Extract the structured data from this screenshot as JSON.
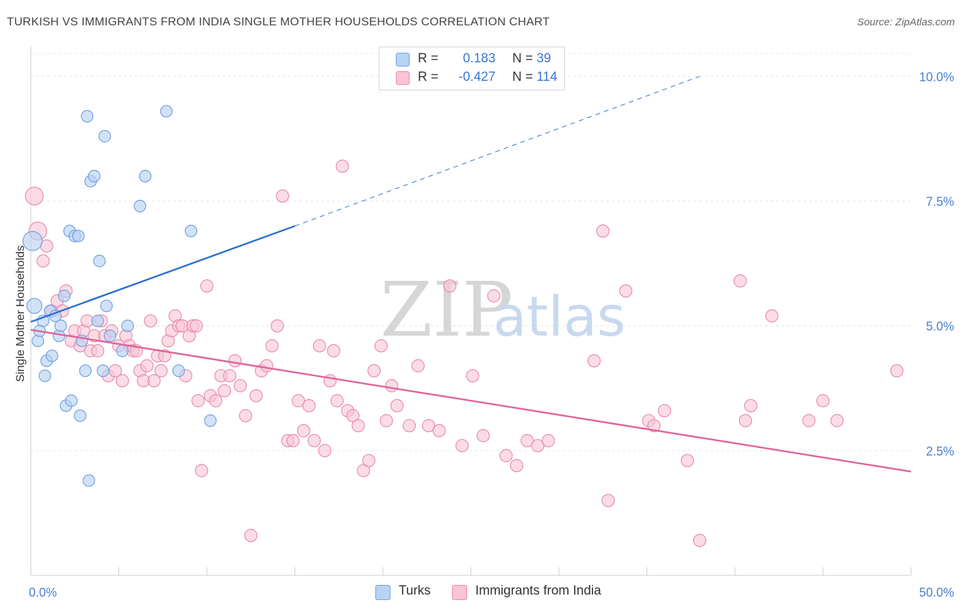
{
  "title": "TURKISH VS IMMIGRANTS FROM INDIA SINGLE MOTHER HOUSEHOLDS CORRELATION CHART",
  "source": "Source: ZipAtlas.com",
  "watermark": {
    "zip": "ZIP",
    "atlas": "atlas"
  },
  "legend": {
    "r_label": "R =",
    "n_label": "N =",
    "turks": {
      "r": "0.183",
      "n": "39"
    },
    "india": {
      "r": "-0.427",
      "n": "114"
    }
  },
  "colors": {
    "turks_fill": "#b9d3f3",
    "turks_stroke": "#6f9fe0",
    "turks_line": "#2b6fcf",
    "india_fill": "#f8c4d6",
    "india_stroke": "#e88aaa",
    "india_line": "#e0649a",
    "grid": "#e4e4e4",
    "axis_text": "#4a7fd0"
  },
  "chart_data": {
    "type": "scatter",
    "title": "TURKISH VS IMMIGRANTS FROM INDIA SINGLE MOTHER HOUSEHOLDS CORRELATION CHART",
    "xlabel": "",
    "ylabel": "Single Mother Households",
    "xlim": [
      0,
      50
    ],
    "ylim": [
      0,
      10.5
    ],
    "x_tick_labels": [
      "0.0%",
      "50.0%"
    ],
    "y_ticks": [
      2.5,
      5.0,
      7.5,
      10.0
    ],
    "y_tick_labels": [
      "2.5%",
      "5.0%",
      "7.5%",
      "10.0%"
    ],
    "grid": true,
    "legend_position": "top-center",
    "series": [
      {
        "name": "Turks",
        "points": [
          [
            0.1,
            6.7
          ],
          [
            0.2,
            5.4
          ],
          [
            0.4,
            4.7
          ],
          [
            0.5,
            4.9
          ],
          [
            0.7,
            5.1
          ],
          [
            0.8,
            4.0
          ],
          [
            0.9,
            4.3
          ],
          [
            1.1,
            5.3
          ],
          [
            1.2,
            4.4
          ],
          [
            1.4,
            5.2
          ],
          [
            1.6,
            4.8
          ],
          [
            1.7,
            5.0
          ],
          [
            1.9,
            5.6
          ],
          [
            2.0,
            3.4
          ],
          [
            2.2,
            6.9
          ],
          [
            2.3,
            3.5
          ],
          [
            2.5,
            6.8
          ],
          [
            2.7,
            6.8
          ],
          [
            2.8,
            3.2
          ],
          [
            2.9,
            4.7
          ],
          [
            3.1,
            4.1
          ],
          [
            3.2,
            9.2
          ],
          [
            3.3,
            1.9
          ],
          [
            3.4,
            7.9
          ],
          [
            3.6,
            8.0
          ],
          [
            3.8,
            5.1
          ],
          [
            3.9,
            6.3
          ],
          [
            4.1,
            4.1
          ],
          [
            4.2,
            8.8
          ],
          [
            4.3,
            5.4
          ],
          [
            4.5,
            4.8
          ],
          [
            5.2,
            4.5
          ],
          [
            5.5,
            5.0
          ],
          [
            6.2,
            7.4
          ],
          [
            6.5,
            8.0
          ],
          [
            7.7,
            9.3
          ],
          [
            8.4,
            4.1
          ],
          [
            9.1,
            6.9
          ],
          [
            10.2,
            3.1
          ]
        ]
      },
      {
        "name": "Immigrants from India",
        "points": [
          [
            0.2,
            7.6
          ],
          [
            0.4,
            6.9
          ],
          [
            0.7,
            6.3
          ],
          [
            0.9,
            6.6
          ],
          [
            1.2,
            5.3
          ],
          [
            1.5,
            5.5
          ],
          [
            1.8,
            5.3
          ],
          [
            2.0,
            5.7
          ],
          [
            2.3,
            4.7
          ],
          [
            2.5,
            4.9
          ],
          [
            2.8,
            4.6
          ],
          [
            3.0,
            4.9
          ],
          [
            3.2,
            5.1
          ],
          [
            3.4,
            4.5
          ],
          [
            3.6,
            4.8
          ],
          [
            3.8,
            4.5
          ],
          [
            4.0,
            5.1
          ],
          [
            4.2,
            4.8
          ],
          [
            4.4,
            4.0
          ],
          [
            4.6,
            4.9
          ],
          [
            4.8,
            4.1
          ],
          [
            5.0,
            4.6
          ],
          [
            5.2,
            3.9
          ],
          [
            5.4,
            4.8
          ],
          [
            5.6,
            4.6
          ],
          [
            5.8,
            4.5
          ],
          [
            6.0,
            4.5
          ],
          [
            6.2,
            4.1
          ],
          [
            6.4,
            3.9
          ],
          [
            6.6,
            4.2
          ],
          [
            6.8,
            5.1
          ],
          [
            7.0,
            3.9
          ],
          [
            7.2,
            4.4
          ],
          [
            7.4,
            4.1
          ],
          [
            7.6,
            4.4
          ],
          [
            7.8,
            4.7
          ],
          [
            8.0,
            4.9
          ],
          [
            8.2,
            5.2
          ],
          [
            8.4,
            5.0
          ],
          [
            8.6,
            5.0
          ],
          [
            8.8,
            4.0
          ],
          [
            9.0,
            4.8
          ],
          [
            9.2,
            5.0
          ],
          [
            9.5,
            3.5
          ],
          [
            9.7,
            2.1
          ],
          [
            10.0,
            5.8
          ],
          [
            10.2,
            3.6
          ],
          [
            10.5,
            3.5
          ],
          [
            10.8,
            4.0
          ],
          [
            11.0,
            3.7
          ],
          [
            11.3,
            4.0
          ],
          [
            11.6,
            4.3
          ],
          [
            11.9,
            3.8
          ],
          [
            12.2,
            3.2
          ],
          [
            12.5,
            0.8
          ],
          [
            12.8,
            3.6
          ],
          [
            13.1,
            4.1
          ],
          [
            13.4,
            4.2
          ],
          [
            13.7,
            4.6
          ],
          [
            14.0,
            5.0
          ],
          [
            14.3,
            7.6
          ],
          [
            14.6,
            2.7
          ],
          [
            14.9,
            2.7
          ],
          [
            15.2,
            3.5
          ],
          [
            15.5,
            2.9
          ],
          [
            15.8,
            3.4
          ],
          [
            16.1,
            2.7
          ],
          [
            16.4,
            4.6
          ],
          [
            16.7,
            2.5
          ],
          [
            17.0,
            3.9
          ],
          [
            17.4,
            3.5
          ],
          [
            17.7,
            8.2
          ],
          [
            18.0,
            3.3
          ],
          [
            18.3,
            3.2
          ],
          [
            18.6,
            3.0
          ],
          [
            18.9,
            2.1
          ],
          [
            19.2,
            2.3
          ],
          [
            19.5,
            4.1
          ],
          [
            19.9,
            4.6
          ],
          [
            20.2,
            3.1
          ],
          [
            20.5,
            3.8
          ],
          [
            20.8,
            3.4
          ],
          [
            21.5,
            3.0
          ],
          [
            22.0,
            4.2
          ],
          [
            22.6,
            3.0
          ],
          [
            23.2,
            2.9
          ],
          [
            23.8,
            5.8
          ],
          [
            24.5,
            2.6
          ],
          [
            25.1,
            4.0
          ],
          [
            25.7,
            2.8
          ],
          [
            26.3,
            5.6
          ],
          [
            27.0,
            2.4
          ],
          [
            27.6,
            2.2
          ],
          [
            28.2,
            2.7
          ],
          [
            28.8,
            2.6
          ],
          [
            29.4,
            2.7
          ],
          [
            32.0,
            4.3
          ],
          [
            32.5,
            6.9
          ],
          [
            32.8,
            1.5
          ],
          [
            33.8,
            5.7
          ],
          [
            35.1,
            3.1
          ],
          [
            35.4,
            3.0
          ],
          [
            37.3,
            2.3
          ],
          [
            38.0,
            0.7
          ],
          [
            40.3,
            5.9
          ],
          [
            40.6,
            3.1
          ],
          [
            40.9,
            3.4
          ],
          [
            42.1,
            5.2
          ],
          [
            44.2,
            3.1
          ],
          [
            45.0,
            3.5
          ],
          [
            45.8,
            3.1
          ],
          [
            49.2,
            4.1
          ],
          [
            9.4,
            5.0
          ],
          [
            17.2,
            4.5
          ],
          [
            36.0,
            3.3
          ]
        ]
      }
    ],
    "trendlines": [
      {
        "name": "Turks",
        "x": [
          0,
          15
        ],
        "y": [
          5.08,
          7.0
        ],
        "dashed_extension_x": [
          15,
          38
        ],
        "dashed_extension_y": [
          7.0,
          10.0
        ]
      },
      {
        "name": "Immigrants from India",
        "x": [
          0,
          50
        ],
        "y": [
          4.92,
          2.08
        ]
      }
    ]
  },
  "bottom_legend": {
    "turks": "Turks",
    "india": "Immigrants from India"
  }
}
